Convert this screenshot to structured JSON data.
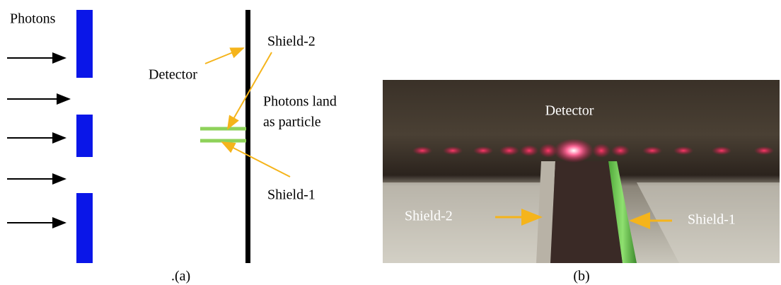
{
  "panel_a": {
    "photons_label": "Photons",
    "detector_label": "Detector",
    "shield2_label": "Shield-2",
    "landing_note": [
      "Photons land",
      "as particle"
    ],
    "shield1_label": "Shield-1",
    "caption": ".(a)"
  },
  "panel_b": {
    "detector_label": "Detector",
    "shield2_label": "Shield-2",
    "shield1_label": "Shield-1",
    "caption": "(b)"
  }
}
